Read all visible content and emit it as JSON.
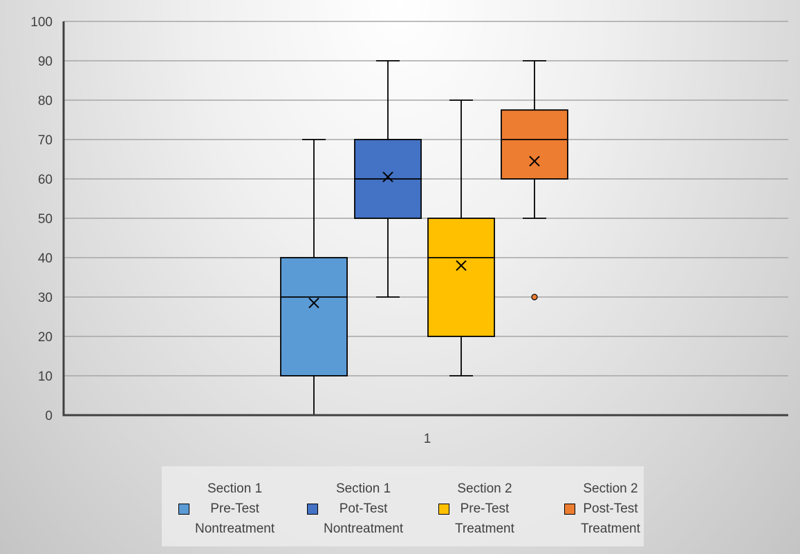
{
  "chart_data": {
    "type": "box",
    "y_axis": {
      "min": 0,
      "max": 100,
      "step": 10,
      "ticks": [
        "0",
        "10",
        "20",
        "30",
        "40",
        "50",
        "60",
        "70",
        "80",
        "90",
        "100"
      ]
    },
    "x_axis": {
      "categories": [
        "1"
      ]
    },
    "grid": true,
    "legend_position": "bottom",
    "series": [
      {
        "legend_lines": [
          "Section 1",
          "Pre-Test",
          "Nontreatment"
        ],
        "color": "#5b9bd5",
        "min": 0,
        "q1": 10,
        "median": 30,
        "q3": 40,
        "max": 70,
        "mean": 28.5,
        "outliers": []
      },
      {
        "legend_lines": [
          "Section 1",
          "Pot-Test",
          "Nontreatment"
        ],
        "color": "#4472c4",
        "min": 30,
        "q1": 50,
        "median": 60,
        "q3": 70,
        "max": 90,
        "mean": 60.5,
        "outliers": []
      },
      {
        "legend_lines": [
          "Section 2",
          "Pre-Test",
          "Treatment"
        ],
        "color": "#ffc000",
        "min": 10,
        "q1": 20,
        "median": 40,
        "q3": 50,
        "max": 80,
        "mean": 38,
        "outliers": []
      },
      {
        "legend_lines": [
          "Section 2",
          "Post-Test",
          "Treatment"
        ],
        "color": "#ed7d31",
        "min": 50,
        "q1": 60,
        "median": 70,
        "q3": 77.5,
        "max": 90,
        "mean": 64.5,
        "outliers": [
          30
        ]
      }
    ]
  }
}
